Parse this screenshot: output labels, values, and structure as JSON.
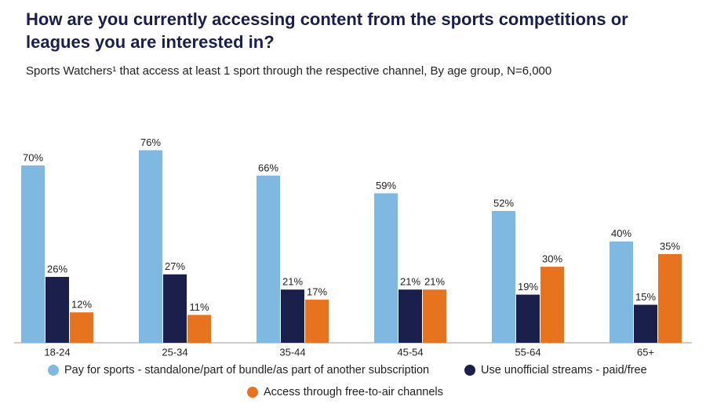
{
  "chart_data": {
    "type": "bar",
    "title": "How are you currently accessing content from the sports competitions or leagues you are interested in?",
    "subtitle": "Sports Watchers¹ that access at least 1 sport through the respective channel, By age group, N=6,000",
    "categories": [
      "18-24",
      "25-34",
      "35-44",
      "45-54",
      "55-64",
      "65+"
    ],
    "series": [
      {
        "name": "Pay for sports - standalone/part of bundle/as part of another subscription",
        "color": "#7fb9e1",
        "values": [
          70,
          76,
          66,
          59,
          52,
          40
        ],
        "value_labels": [
          "70%",
          "76%",
          "66%",
          "59%",
          "52%",
          "40%"
        ]
      },
      {
        "name": "Use unofficial streams - paid/free",
        "color": "#1b1f4b",
        "values": [
          26,
          27,
          21,
          21,
          19,
          15
        ],
        "value_labels": [
          "26%",
          "27%",
          "21%",
          "21%",
          "19%",
          "15%"
        ]
      },
      {
        "name": "Access through free-to-air channels",
        "color": "#e8731f",
        "values": [
          12,
          11,
          17,
          21,
          30,
          35
        ],
        "value_labels": [
          "12%",
          "11%",
          "17%",
          "21%",
          "30%",
          "35%"
        ]
      }
    ]
  }
}
